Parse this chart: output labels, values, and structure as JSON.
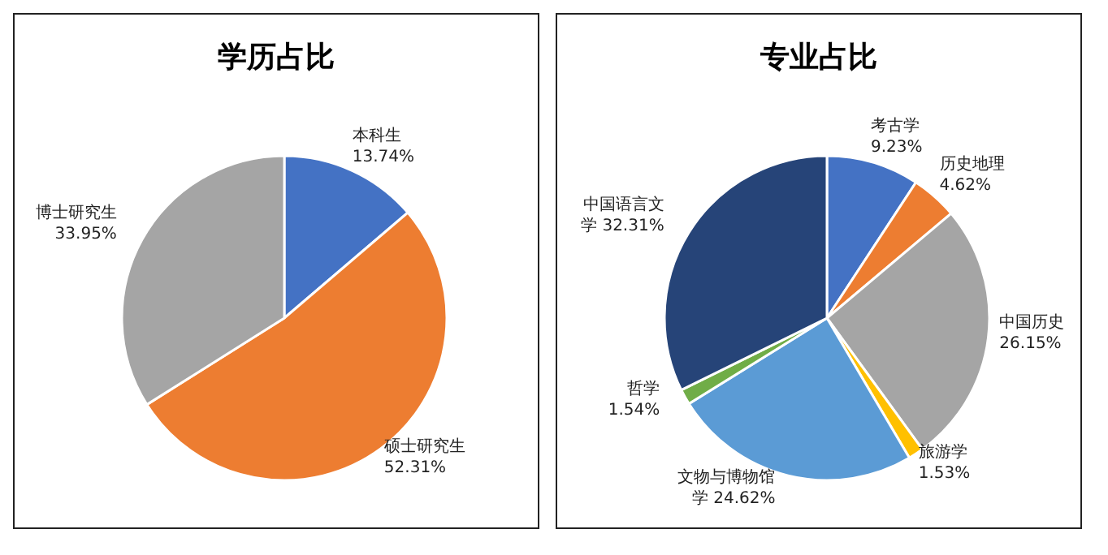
{
  "chart_data": [
    {
      "type": "pie",
      "title": "学历占比",
      "categories": [
        "本科生",
        "硕士研究生",
        "博士研究生"
      ],
      "values": [
        13.74,
        52.31,
        33.95
      ],
      "value_labels": [
        "13.74%",
        "52.31%",
        "33.95%"
      ],
      "colors": [
        "#4472c4",
        "#ed7d31",
        "#a5a5a5"
      ],
      "legend": false
    },
    {
      "type": "pie",
      "title": "专业占比",
      "categories": [
        "考古学",
        "历史地理",
        "中国历史",
        "旅游学",
        "文物与博物馆学",
        "哲学",
        "中国语言文学"
      ],
      "values": [
        9.23,
        4.62,
        26.15,
        1.53,
        24.62,
        1.54,
        32.31
      ],
      "value_labels": [
        "9.23%",
        "4.62%",
        "26.15%",
        "1.53%",
        "24.62%",
        "1.54%",
        "32.31%"
      ],
      "colors": [
        "#4472c4",
        "#ed7d31",
        "#a5a5a5",
        "#ffc000",
        "#5b9bd5",
        "#70ad47",
        "#264478"
      ],
      "legend": false
    }
  ]
}
